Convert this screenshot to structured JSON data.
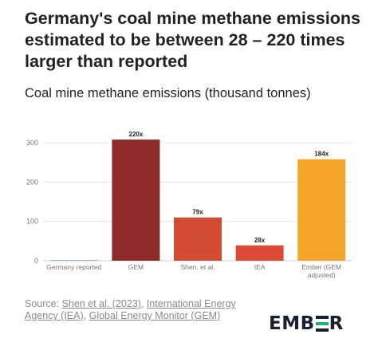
{
  "header": {
    "title": "Germany's coal mine methane emissions estimated to be between 28 – 220 times larger than reported",
    "subtitle": "Coal mine methane emissions (thousand tonnes)"
  },
  "chart_data": {
    "type": "bar",
    "title": "",
    "xlabel": "",
    "ylabel": "",
    "ylim": [
      0,
      300
    ],
    "yticks": [
      0,
      100,
      200,
      300
    ],
    "ytick_labels": [
      "0",
      "100",
      "200",
      "300"
    ],
    "grid": true,
    "categories": [
      "Germany reported",
      "GEM",
      "Shen. et al.",
      "IEA",
      "Ember (GEM adjusted)"
    ],
    "category_lines": [
      [
        "Germany reported"
      ],
      [
        "GEM"
      ],
      [
        "Shen. et al."
      ],
      [
        "IEA"
      ],
      [
        "Ember (GEM",
        "adjusted)"
      ]
    ],
    "values": [
      1.4,
      308,
      110,
      39,
      258
    ],
    "data_labels": [
      "",
      "220x",
      "79x",
      "28x",
      "184x"
    ],
    "colors": [
      "#9bb3cc",
      "#8e2a2a",
      "#d24b33",
      "#db4a36",
      "#f4a62a"
    ]
  },
  "footer": {
    "source_prefix": "Source: ",
    "source_links": [
      "Shen et al. (2023)",
      "International Energy Agency (IEA)",
      "Global Energy Monitor (GEM)"
    ],
    "separator": ", ",
    "logo": {
      "left": "EMB",
      "right": "R",
      "mark_colors": [
        "#1a2030",
        "#1fb76d"
      ]
    }
  }
}
